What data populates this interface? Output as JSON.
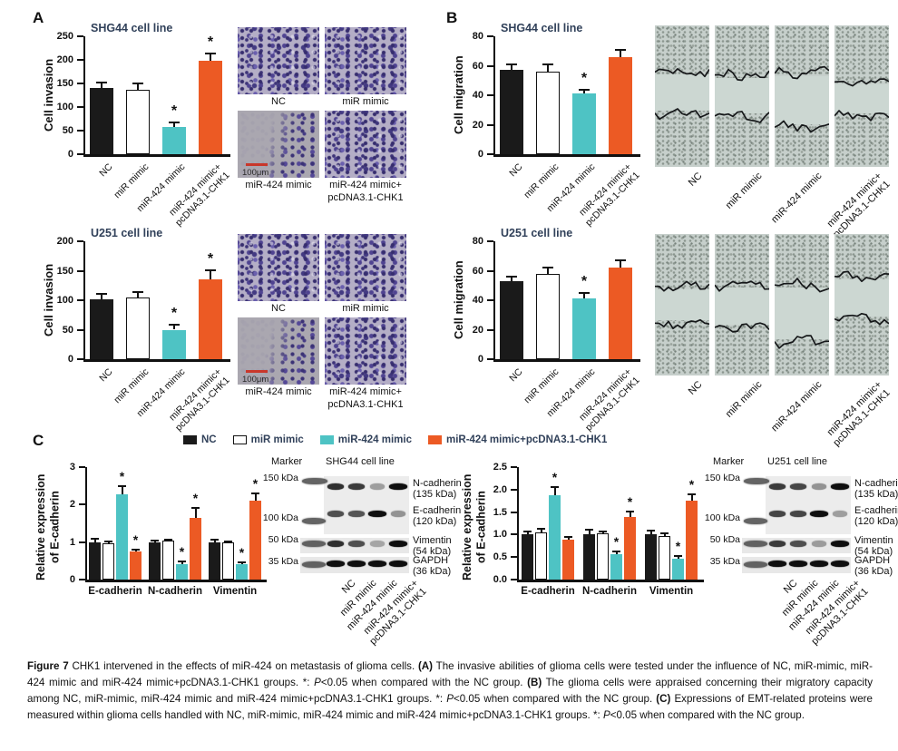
{
  "figure": {
    "panels": {
      "A": "A",
      "B": "B",
      "C": "C"
    },
    "colors": {
      "nc": "#1a1a1a",
      "mir_mimic": "#ffffff",
      "mir424_mimic": "#4ec3c4",
      "combo": "#ec5a24",
      "bar_outline": "#111111",
      "title": "#31415a",
      "scalebar_red": "#c9372b"
    },
    "legend": [
      {
        "label": "NC",
        "color": "#1a1a1a"
      },
      {
        "label": "miR mimic",
        "color": "#ffffff"
      },
      {
        "label": "miR-424 mimic",
        "color": "#4ec3c4"
      },
      {
        "label": "miR-424 mimic+pcDNA3.1-CHK1",
        "color": "#ec5a24"
      }
    ]
  },
  "chart_data": [
    {
      "id": "invasion_shg44",
      "type": "bar",
      "title": "SHG44 cell line",
      "ylabel": "Cell invasion",
      "ylim": [
        0,
        250
      ],
      "yticks": [
        0,
        50,
        100,
        150,
        200,
        250
      ],
      "categories": [
        "NC",
        "miR mimic",
        "miR-424 mimic",
        "miR-424 mimic+\npcDNA3.1-CHK1"
      ],
      "values": [
        140,
        137,
        58,
        198
      ],
      "errors": [
        12,
        13,
        9,
        16
      ],
      "significant": [
        false,
        false,
        true,
        true
      ]
    },
    {
      "id": "invasion_u251",
      "type": "bar",
      "title": "U251 cell line",
      "ylabel": "Cell invasion",
      "ylim": [
        0,
        200
      ],
      "yticks": [
        0,
        50,
        100,
        150,
        200
      ],
      "categories": [
        "NC",
        "miR mimic",
        "miR-424 mimic",
        "miR-424 mimic+\npcDNA3.1-CHK1"
      ],
      "values": [
        102,
        105,
        50,
        136
      ],
      "errors": [
        9,
        9,
        8,
        15
      ],
      "significant": [
        false,
        false,
        true,
        true
      ]
    },
    {
      "id": "migration_shg44",
      "type": "bar",
      "title": "SHG44 cell line",
      "ylabel": "Cell migration",
      "ylim": [
        0,
        80
      ],
      "yticks": [
        0,
        20,
        40,
        60,
        80
      ],
      "categories": [
        "NC",
        "miR mimic",
        "miR-424 mimic",
        "miR-424 mimic+\npcDNA3.1-CHK1"
      ],
      "values": [
        57,
        56,
        41,
        66
      ],
      "errors": [
        4,
        5,
        3,
        5
      ],
      "significant": [
        false,
        false,
        true,
        false
      ]
    },
    {
      "id": "migration_u251",
      "type": "bar",
      "title": "U251 cell line",
      "ylabel": "Cell migration",
      "ylim": [
        0,
        80
      ],
      "yticks": [
        0,
        20,
        40,
        60,
        80
      ],
      "categories": [
        "NC",
        "miR mimic",
        "miR-424 mimic",
        "miR-424 mimic+\npcDNA3.1-CHK1"
      ],
      "values": [
        53,
        58,
        41,
        62
      ],
      "errors": [
        3,
        4,
        4,
        5
      ],
      "significant": [
        false,
        false,
        true,
        false
      ]
    },
    {
      "id": "emt_shg44",
      "type": "grouped_bar",
      "ylabel": "Relative expression\nof E-cadherin",
      "ylim": [
        0,
        3
      ],
      "yticks": [
        0,
        1,
        2,
        3
      ],
      "tick_decimals": 0,
      "group_labels": [
        "E-cadherin",
        "N-cadherin",
        "Vimentin"
      ],
      "series": [
        {
          "name": "NC",
          "values": [
            1.0,
            1.0,
            1.0
          ],
          "errors": [
            0.08,
            0.05,
            0.07
          ],
          "significant": [
            false,
            false,
            false
          ]
        },
        {
          "name": "miR mimic",
          "values": [
            0.97,
            1.03,
            0.98
          ],
          "errors": [
            0.05,
            0.04,
            0.04
          ],
          "significant": [
            false,
            false,
            false
          ]
        },
        {
          "name": "miR-424 mimic",
          "values": [
            2.28,
            0.42,
            0.4
          ],
          "errors": [
            0.2,
            0.07,
            0.05
          ],
          "significant": [
            true,
            true,
            true
          ]
        },
        {
          "name": "miR-424 mimic+pcDNA3.1-CHK1",
          "values": [
            0.75,
            1.65,
            2.1
          ],
          "errors": [
            0.05,
            0.25,
            0.2
          ],
          "significant": [
            true,
            true,
            true
          ]
        }
      ]
    },
    {
      "id": "emt_u251",
      "type": "grouped_bar",
      "ylabel": "Relative expression\nof E-cadherin",
      "ylim": [
        0,
        2.5
      ],
      "yticks": [
        0,
        0.5,
        1,
        1.5,
        2,
        2.5
      ],
      "tick_decimals": 1,
      "group_labels": [
        "E-cadherin",
        "N-cadherin",
        "Vimentin"
      ],
      "series": [
        {
          "name": "NC",
          "values": [
            1.0,
            1.0,
            1.0
          ],
          "errors": [
            0.07,
            0.1,
            0.09
          ],
          "significant": [
            false,
            false,
            false
          ]
        },
        {
          "name": "miR mimic",
          "values": [
            1.05,
            1.02,
            0.97
          ],
          "errors": [
            0.07,
            0.04,
            0.05
          ],
          "significant": [
            false,
            false,
            false
          ]
        },
        {
          "name": "miR-424 mimic",
          "values": [
            1.88,
            0.56,
            0.47
          ],
          "errors": [
            0.17,
            0.07,
            0.05
          ],
          "significant": [
            true,
            true,
            true
          ]
        },
        {
          "name": "miR-424 mimic+pcDNA3.1-CHK1",
          "values": [
            0.89,
            1.39,
            1.75
          ],
          "errors": [
            0.05,
            0.12,
            0.15
          ],
          "significant": [
            false,
            true,
            true
          ]
        }
      ]
    }
  ],
  "transwell": {
    "labels": [
      "NC",
      "miR mimic",
      "miR-424 mimic",
      "miR-424 mimic+\npcDNA3.1-CHK1"
    ],
    "scale_bar": "100μm",
    "density": [
      "dense",
      "dense",
      "sparse",
      "dense"
    ]
  },
  "wound": {
    "labels": [
      "NC",
      "miR mimic",
      "miR-424 mimic",
      "miR-424 mimic+\npcDNA3.1-CHK1"
    ],
    "gaps_shg44": [
      [
        0.33,
        0.62
      ],
      [
        0.35,
        0.64
      ],
      [
        0.34,
        0.72
      ],
      [
        0.4,
        0.64
      ]
    ],
    "gaps_u251": [
      [
        0.37,
        0.63
      ],
      [
        0.36,
        0.66
      ],
      [
        0.36,
        0.76
      ],
      [
        0.3,
        0.6
      ]
    ]
  },
  "blots": [
    {
      "id": "wb_shg44",
      "marker_label": "Marker",
      "cell_line": "SHG44 cell line",
      "kda_labels": [
        "150 kDa",
        "100 kDa",
        "50 kDa",
        "35 kDa"
      ],
      "proteins": [
        {
          "name": "N-cadherin",
          "kda": "(135 kDa)",
          "intensities": [
            0.85,
            0.8,
            0.35,
            1.0
          ]
        },
        {
          "name": "E-cadherin",
          "kda": "(120 kDa)",
          "intensities": [
            0.7,
            0.68,
            1.0,
            0.4
          ]
        },
        {
          "name": "Vimentin",
          "kda": "(54 kDa)",
          "intensities": [
            0.85,
            0.7,
            0.3,
            1.0
          ]
        },
        {
          "name": "GAPDH",
          "kda": "(36 kDa)",
          "intensities": [
            1.0,
            1.0,
            1.0,
            1.0
          ]
        }
      ],
      "lanes": [
        "NC",
        "miR mimic",
        "miR-424 mimic",
        "miR-424 mimic+\npcDNA3.1-CHK1"
      ]
    },
    {
      "id": "wb_u251",
      "marker_label": "Marker",
      "cell_line": "U251 cell line",
      "kda_labels": [
        "150 kDa",
        "100 kDa",
        "50 kDa",
        "35 kDa"
      ],
      "proteins": [
        {
          "name": "N-cadherin",
          "kda": "(135 kDa)",
          "intensities": [
            0.8,
            0.75,
            0.4,
            1.0
          ]
        },
        {
          "name": "E-cadherin",
          "kda": "(120 kDa)",
          "intensities": [
            0.75,
            0.75,
            1.0,
            0.35
          ]
        },
        {
          "name": "Vimentin",
          "kda": "(54 kDa)",
          "intensities": [
            0.8,
            0.7,
            0.35,
            1.0
          ]
        },
        {
          "name": "GAPDH",
          "kda": "(36 kDa)",
          "intensities": [
            1.0,
            1.0,
            1.0,
            1.0
          ]
        }
      ],
      "lanes": [
        "NC",
        "miR mimic",
        "miR-424 mimic",
        "miR-424 mimic+\npcDNA3.1-CHK1"
      ]
    }
  ],
  "caption": {
    "segments": [
      {
        "t": "Figure 7 ",
        "b": 1
      },
      {
        "t": "CHK1 intervened in the effects of miR-424 on metastasis of glioma cells. "
      },
      {
        "t": "(A)",
        "b": 1
      },
      {
        "t": " The invasive abilities of glioma cells were tested under the influence of NC, miR-mimic, miR-424 mimic and miR-424 mimic+pcDNA3.1-CHK1 groups. *: "
      },
      {
        "t": "P",
        "i": 1
      },
      {
        "t": "<0.05 when compared with the NC group. "
      },
      {
        "t": "(B)",
        "b": 1
      },
      {
        "t": " The glioma cells were appraised concerning their migratory capacity among NC, miR-mimic, miR-424 mimic and miR-424 mimic+pcDNA3.1-CHK1 groups. *: "
      },
      {
        "t": "P",
        "i": 1
      },
      {
        "t": "<0.05 when compared with the NC group. "
      },
      {
        "t": "(C)",
        "b": 1
      },
      {
        "t": " Expressions of EMT-related proteins were measured within glioma cells handled with NC, miR-mimic, miR-424 mimic and miR-424 mimic+pcDNA3.1-CHK1 groups. *: "
      },
      {
        "t": "P",
        "i": 1
      },
      {
        "t": "<0.05 when compared with the NC group."
      }
    ]
  }
}
